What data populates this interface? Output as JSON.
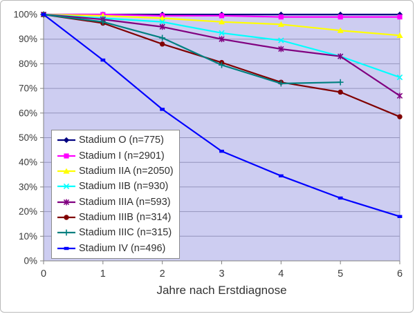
{
  "chart_data": {
    "type": "line",
    "title": "",
    "xlabel": "Jahre nach Erstdiagnose",
    "ylabel": "",
    "x": [
      0,
      1,
      2,
      3,
      4,
      5,
      6
    ],
    "x_tick_labels": [
      "0",
      "1",
      "2",
      "3",
      "4",
      "5",
      "6"
    ],
    "ylim": [
      0,
      100
    ],
    "y_ticks": [
      0,
      10,
      20,
      30,
      40,
      50,
      60,
      70,
      80,
      90,
      100
    ],
    "y_tick_labels": [
      "0%",
      "10%",
      "20%",
      "30%",
      "40%",
      "50%",
      "60%",
      "70%",
      "80%",
      "90%",
      "100%"
    ],
    "grid": "horizontal",
    "legend_position": "inside-top-left",
    "series": [
      {
        "name": "Stadium O (n=775)",
        "color": "#000080",
        "marker": "diamond",
        "values": [
          100,
          100,
          100,
          100,
          100,
          100,
          100
        ]
      },
      {
        "name": "Stadium I (n=2901)",
        "color": "#FF00FF",
        "marker": "square",
        "values": [
          100,
          100,
          99.5,
          99.5,
          99,
          99,
          99
        ]
      },
      {
        "name": "Stadium IIA (n=2050)",
        "color": "#FFFF00",
        "marker": "triangle",
        "values": [
          100,
          99.5,
          98.5,
          97,
          96,
          93.5,
          91.5
        ]
      },
      {
        "name": "Stadium IIB (n=930)",
        "color": "#00FFFF",
        "marker": "x",
        "values": [
          100,
          98.5,
          97,
          92.5,
          89.5,
          83,
          74.5
        ]
      },
      {
        "name": "Stadium IIIA (n=593)",
        "color": "#800080",
        "marker": "asterisk",
        "values": [
          100,
          98,
          95,
          90,
          86,
          83,
          67
        ]
      },
      {
        "name": "Stadium IIIB (n=314)",
        "color": "#800000",
        "marker": "circle",
        "values": [
          100,
          96.5,
          88,
          80.5,
          72.5,
          68.5,
          58.5
        ]
      },
      {
        "name": "Stadium IIIC (n=315)",
        "color": "#008080",
        "marker": "plus",
        "values": [
          100,
          97,
          90.5,
          79.5,
          72,
          72.5,
          null
        ]
      },
      {
        "name": "Stadium IV (n=496)",
        "color": "#0000FF",
        "marker": "dash",
        "values": [
          100,
          81.5,
          61.5,
          44.5,
          34.5,
          25.5,
          18
        ]
      }
    ],
    "colors": {
      "plot_bg": "#cdcdf1",
      "gridline": "#9494bc",
      "axis_line": "#808080",
      "tick_text": "#3a3a3a",
      "legend_bg": "#ffffff",
      "legend_border": "#8a8a8a",
      "frame_border": "#b9b9b9",
      "page_bg": "#ffffff"
    }
  }
}
